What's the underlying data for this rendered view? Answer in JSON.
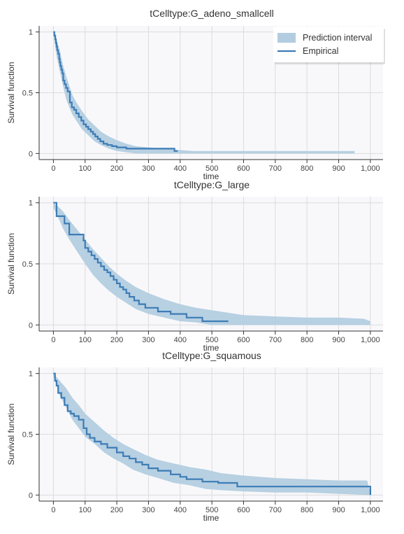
{
  "colors": {
    "band": "#b3cde0",
    "line": "#3d7cb5",
    "plot_bg": "#f8f8fb",
    "grid": "#dcdcdc",
    "axis": "#333333"
  },
  "legend": {
    "items": [
      {
        "label": "Prediction interval",
        "kind": "band"
      },
      {
        "label": "Empirical",
        "kind": "line"
      }
    ],
    "placement": "top-right"
  },
  "chart_data": [
    {
      "type": "line",
      "title": "tCelltype:G_adeno_smallcell",
      "xlabel": "time",
      "ylabel": "Survival function",
      "xlim": [
        -45,
        1040
      ],
      "ylim": [
        -0.05,
        1.05
      ],
      "xticks": [
        0,
        100,
        200,
        300,
        400,
        500,
        600,
        700,
        800,
        900,
        1000
      ],
      "xtick_labels": [
        "0",
        "100",
        "200",
        "300",
        "400",
        "500",
        "600",
        "700",
        "800",
        "900",
        "1,000"
      ],
      "yticks": [
        0,
        0.5,
        1
      ],
      "ytick_labels": [
        "0",
        "0.5",
        "1"
      ],
      "grid": true,
      "legend": true,
      "band": {
        "x": [
          0,
          10,
          20,
          30,
          40,
          50,
          60,
          75,
          90,
          110,
          130,
          150,
          175,
          200,
          230,
          260,
          300,
          340,
          390,
          440,
          500,
          600,
          700,
          800,
          900,
          950
        ],
        "upper": [
          1.0,
          0.94,
          0.85,
          0.73,
          0.64,
          0.56,
          0.48,
          0.41,
          0.35,
          0.28,
          0.23,
          0.18,
          0.14,
          0.11,
          0.08,
          0.06,
          0.05,
          0.04,
          0.03,
          0.02,
          0.02,
          0.02,
          0.02,
          0.02,
          0.02,
          0.02
        ],
        "lower": [
          0.98,
          0.8,
          0.68,
          0.56,
          0.45,
          0.38,
          0.32,
          0.26,
          0.2,
          0.15,
          0.1,
          0.07,
          0.04,
          0.02,
          0.01,
          0.0,
          0.0,
          0.0,
          0.0,
          0.0,
          0.0,
          0.0,
          0.0,
          0.0,
          0.0,
          0.0
        ]
      },
      "series": [
        {
          "name": "Empirical",
          "x": [
            0,
            3,
            6,
            8,
            10,
            12,
            15,
            18,
            20,
            22,
            25,
            28,
            31,
            35,
            40,
            45,
            52,
            58,
            65,
            72,
            80,
            88,
            95,
            103,
            110,
            118,
            125,
            132,
            140,
            148,
            158,
            170,
            185,
            200,
            230,
            262,
            300,
            345,
            382,
            392
          ],
          "y": [
            1.0,
            0.97,
            0.94,
            0.91,
            0.88,
            0.85,
            0.82,
            0.78,
            0.75,
            0.72,
            0.69,
            0.66,
            0.6,
            0.57,
            0.54,
            0.51,
            0.42,
            0.38,
            0.36,
            0.33,
            0.3,
            0.27,
            0.24,
            0.22,
            0.2,
            0.18,
            0.16,
            0.14,
            0.12,
            0.1,
            0.08,
            0.07,
            0.06,
            0.05,
            0.04,
            0.04,
            0.04,
            0.04,
            0.02,
            0.02
          ]
        }
      ]
    },
    {
      "type": "line",
      "title": "tCelltype:G_large",
      "xlabel": "time",
      "ylabel": "Survival function",
      "xlim": [
        -45,
        1040
      ],
      "ylim": [
        -0.05,
        1.05
      ],
      "xticks": [
        0,
        100,
        200,
        300,
        400,
        500,
        600,
        700,
        800,
        900,
        1000
      ],
      "xtick_labels": [
        "0",
        "100",
        "200",
        "300",
        "400",
        "500",
        "600",
        "700",
        "800",
        "900",
        "1,000"
      ],
      "yticks": [
        0,
        0.5,
        1
      ],
      "ytick_labels": [
        "0",
        "0.5",
        "1"
      ],
      "grid": true,
      "legend": false,
      "band": {
        "x": [
          0,
          15,
          30,
          50,
          75,
          100,
          125,
          150,
          175,
          200,
          230,
          260,
          300,
          350,
          400,
          450,
          500,
          550,
          600,
          700,
          800,
          900,
          980,
          1000
        ],
        "upper": [
          1.0,
          0.97,
          0.93,
          0.86,
          0.78,
          0.7,
          0.62,
          0.55,
          0.48,
          0.42,
          0.36,
          0.31,
          0.26,
          0.21,
          0.17,
          0.14,
          0.12,
          0.1,
          0.08,
          0.07,
          0.06,
          0.06,
          0.05,
          0.03
        ],
        "lower": [
          0.96,
          0.88,
          0.79,
          0.7,
          0.6,
          0.5,
          0.41,
          0.34,
          0.28,
          0.23,
          0.18,
          0.13,
          0.09,
          0.06,
          0.03,
          0.02,
          0.0,
          0.0,
          0.0,
          0.0,
          0.0,
          0.0,
          0.0,
          0.0
        ]
      },
      "series": [
        {
          "name": "Empirical",
          "x": [
            0,
            10,
            20,
            35,
            50,
            60,
            90,
            95,
            100,
            110,
            120,
            130,
            140,
            150,
            160,
            170,
            180,
            190,
            200,
            210,
            220,
            230,
            240,
            255,
            270,
            290,
            330,
            370,
            420,
            470,
            500,
            552
          ],
          "y": [
            1.0,
            0.89,
            0.89,
            0.83,
            0.74,
            0.74,
            0.74,
            0.69,
            0.63,
            0.6,
            0.57,
            0.54,
            0.51,
            0.48,
            0.45,
            0.43,
            0.4,
            0.37,
            0.34,
            0.31,
            0.29,
            0.26,
            0.23,
            0.2,
            0.17,
            0.14,
            0.11,
            0.09,
            0.06,
            0.03,
            0.03,
            0.03
          ]
        }
      ]
    },
    {
      "type": "line",
      "title": "tCelltype:G_squamous",
      "xlabel": "time",
      "ylabel": "Survival function",
      "xlim": [
        -45,
        1040
      ],
      "ylim": [
        -0.05,
        1.05
      ],
      "xticks": [
        0,
        100,
        200,
        300,
        400,
        500,
        600,
        700,
        800,
        900,
        1000
      ],
      "xtick_labels": [
        "0",
        "100",
        "200",
        "300",
        "400",
        "500",
        "600",
        "700",
        "800",
        "900",
        "1,000"
      ],
      "yticks": [
        0,
        0.5,
        1
      ],
      "ytick_labels": [
        "0",
        "0.5",
        "1"
      ],
      "grid": true,
      "legend": false,
      "band": {
        "x": [
          0,
          20,
          40,
          60,
          80,
          100,
          130,
          160,
          190,
          220,
          250,
          290,
          330,
          380,
          430,
          480,
          530,
          600,
          700,
          800,
          900,
          990,
          1000
        ],
        "upper": [
          1.0,
          0.94,
          0.88,
          0.8,
          0.74,
          0.67,
          0.6,
          0.53,
          0.47,
          0.42,
          0.38,
          0.33,
          0.29,
          0.26,
          0.23,
          0.21,
          0.18,
          0.16,
          0.14,
          0.13,
          0.12,
          0.12,
          0.02
        ],
        "lower": [
          0.98,
          0.82,
          0.72,
          0.62,
          0.55,
          0.48,
          0.42,
          0.35,
          0.3,
          0.26,
          0.21,
          0.17,
          0.14,
          0.1,
          0.08,
          0.05,
          0.04,
          0.03,
          0.02,
          0.02,
          0.01,
          0.0,
          0.0
        ]
      },
      "series": [
        {
          "name": "Empirical",
          "x": [
            0,
            5,
            10,
            15,
            25,
            35,
            45,
            55,
            65,
            80,
            95,
            105,
            115,
            130,
            150,
            170,
            200,
            220,
            240,
            260,
            280,
            300,
            330,
            370,
            400,
            420,
            470,
            520,
            580,
            650,
            700,
            800,
            900,
            990,
            1000
          ],
          "y": [
            1.0,
            0.94,
            0.9,
            0.84,
            0.8,
            0.74,
            0.69,
            0.67,
            0.65,
            0.62,
            0.55,
            0.5,
            0.47,
            0.44,
            0.42,
            0.39,
            0.35,
            0.32,
            0.3,
            0.27,
            0.25,
            0.22,
            0.2,
            0.17,
            0.15,
            0.13,
            0.11,
            0.1,
            0.07,
            0.07,
            0.07,
            0.07,
            0.07,
            0.07,
            0.0
          ]
        }
      ]
    }
  ]
}
